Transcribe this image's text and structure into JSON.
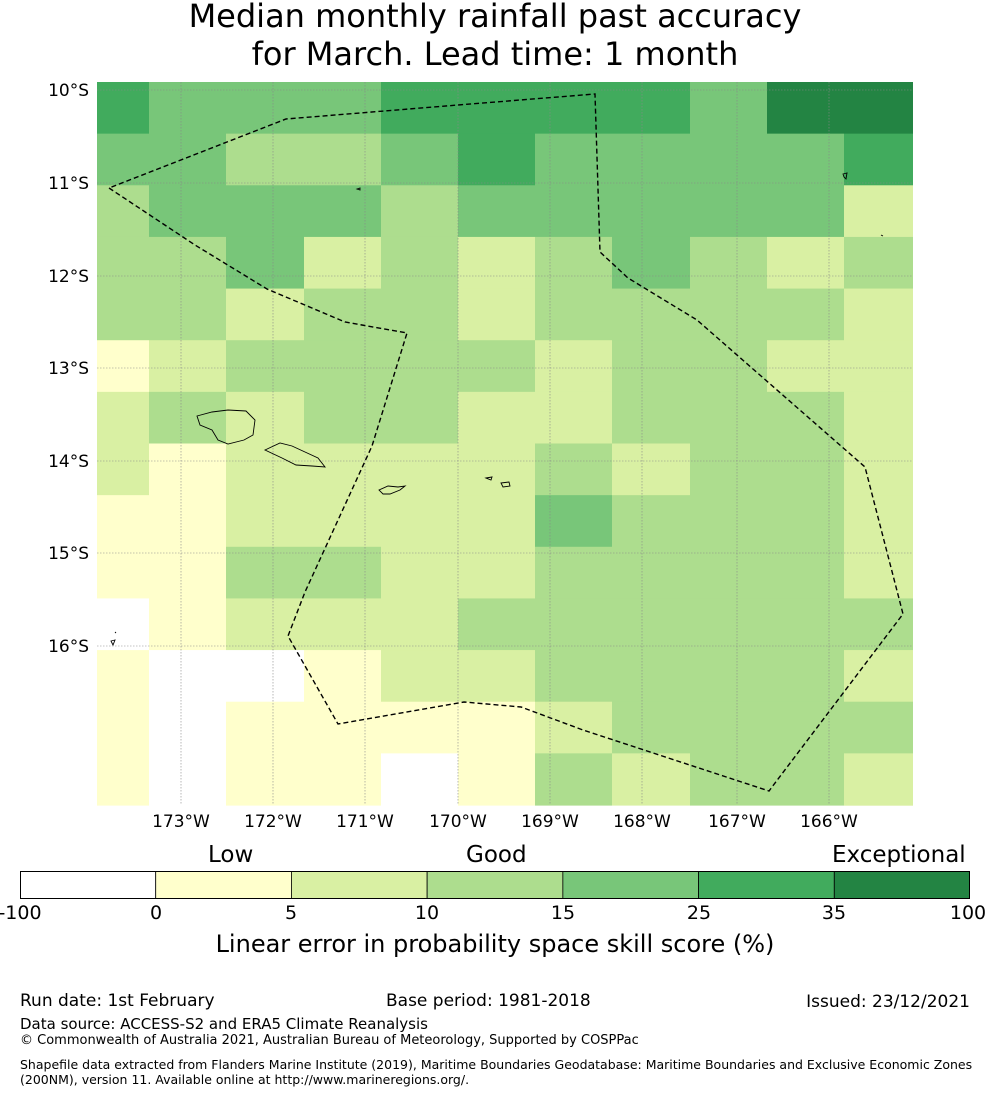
{
  "title": {
    "line1": "Median monthly rainfall past accuracy",
    "line2": "for March. Lead time: 1 month"
  },
  "map": {
    "lat_labels": [
      "10°S",
      "11°S",
      "12°S",
      "13°S",
      "14°S",
      "15°S",
      "16°S"
    ],
    "lon_labels": [
      "173°W",
      "172°W",
      "171°W",
      "170°W",
      "169°W",
      "168°W",
      "167°W",
      "166°W"
    ],
    "grid_colors": [
      [
        "#41ab5d",
        "#78c679",
        "#78c679",
        "#78c679",
        "#41ab5d",
        "#41ab5d",
        "#41ab5d",
        "#41ab5d",
        "#78c679",
        "#238443",
        "#41ab5d",
        "#238443"
      ],
      [
        "#78c679",
        "#78c679",
        "#addd8e",
        "#addd8e",
        "#78c679",
        "#41ab5d",
        "#78c679",
        "#78c679",
        "#78c679",
        "#78c679",
        "#78c679",
        "#41ab5d"
      ],
      [
        "#addd8e",
        "#78c679",
        "#78c679",
        "#78c679",
        "#addd8e",
        "#78c679",
        "#78c679",
        "#78c679",
        "#78c679",
        "#78c679",
        "#addd8e",
        "#d9f0a3"
      ],
      [
        "#addd8e",
        "#addd8e",
        "#78c679",
        "#d9f0a3",
        "#addd8e",
        "#d9f0a3",
        "#addd8e",
        "#78c679",
        "#addd8e",
        "#d9f0a3",
        "#d9f0a3",
        "#addd8e"
      ],
      [
        "#addd8e",
        "#addd8e",
        "#d9f0a3",
        "#addd8e",
        "#addd8e",
        "#d9f0a3",
        "#addd8e",
        "#addd8e",
        "#addd8e",
        "#addd8e",
        "#d9f0a3",
        "#d9f0a3"
      ],
      [
        "#ffffcc",
        "#d9f0a3",
        "#addd8e",
        "#addd8e",
        "#addd8e",
        "#addd8e",
        "#d9f0a3",
        "#addd8e",
        "#addd8e",
        "#d9f0a3",
        "#d9f0a3",
        "#d9f0a3"
      ],
      [
        "#d9f0a3",
        "#addd8e",
        "#d9f0a3",
        "#addd8e",
        "#addd8e",
        "#d9f0a3",
        "#d9f0a3",
        "#addd8e",
        "#addd8e",
        "#addd8e",
        "#d9f0a3",
        "#d9f0a3"
      ],
      [
        "#d9f0a3",
        "#ffffcc",
        "#d9f0a3",
        "#d9f0a3",
        "#d9f0a3",
        "#d9f0a3",
        "#addd8e",
        "#d9f0a3",
        "#addd8e",
        "#addd8e",
        "#addd8e",
        "#d9f0a3"
      ],
      [
        "#ffffcc",
        "#ffffcc",
        "#d9f0a3",
        "#d9f0a3",
        "#d9f0a3",
        "#d9f0a3",
        "#78c679",
        "#addd8e",
        "#addd8e",
        "#addd8e",
        "#addd8e",
        "#d9f0a3"
      ],
      [
        "#ffffcc",
        "#ffffcc",
        "#addd8e",
        "#addd8e",
        "#d9f0a3",
        "#d9f0a3",
        "#addd8e",
        "#addd8e",
        "#addd8e",
        "#addd8e",
        "#d9f0a3",
        "#d9f0a3"
      ],
      [
        "#ffffff",
        "#ffffcc",
        "#d9f0a3",
        "#d9f0a3",
        "#d9f0a3",
        "#addd8e",
        "#addd8e",
        "#addd8e",
        "#addd8e",
        "#addd8e",
        "#78c679",
        "#addd8e"
      ],
      [
        "#ffffcc",
        "#ffffff",
        "#ffffff",
        "#ffffcc",
        "#d9f0a3",
        "#d9f0a3",
        "#addd8e",
        "#addd8e",
        "#addd8e",
        "#addd8e",
        "#addd8e",
        "#d9f0a3"
      ],
      [
        "#ffffcc",
        "#ffffff",
        "#ffffcc",
        "#ffffcc",
        "#ffffcc",
        "#ffffcc",
        "#d9f0a3",
        "#addd8e",
        "#addd8e",
        "#addd8e",
        "#d9f0a3",
        "#addd8e"
      ],
      [
        "#ffffcc",
        "#ffffff",
        "#ffffcc",
        "#ffffcc",
        "#ffffff",
        "#ffffcc",
        "#addd8e",
        "#d9f0a3",
        "#addd8e",
        "#addd8e",
        "#d9f0a3",
        "#d9f0a3"
      ]
    ]
  },
  "colorbar": {
    "categories": {
      "low": "Low",
      "good": "Good",
      "exceptional": "Exceptional"
    },
    "colors": [
      "#ffffff",
      "#ffffcc",
      "#d9f0a3",
      "#addd8e",
      "#78c679",
      "#41ab5d",
      "#238443"
    ],
    "ticks": [
      "-100",
      "0",
      "5",
      "10",
      "15",
      "25",
      "35",
      "100"
    ],
    "label": "Linear error in probability space skill score (%)"
  },
  "footer": {
    "run_date": "Run date: 1st February",
    "base_period": "Base period: 1981-2018",
    "issued": "Issued: 23/12/2021",
    "data_source": "Data source: ACCESS-S2 and ERA5 Climate Reanalysis",
    "copyright": "© Commonwealth of Australia 2021, Australian Bureau of Meteorology, Supported by COSPPac",
    "shapefile_line1": "Shapefile data extracted from Flanders Marine Institute (2019), Maritime Boundaries Geodatabase: Maritime Boundaries and Exclusive Economic Zones",
    "shapefile_line2": "(200NM), version 11. Available online at http://www.marineregions.org/."
  }
}
